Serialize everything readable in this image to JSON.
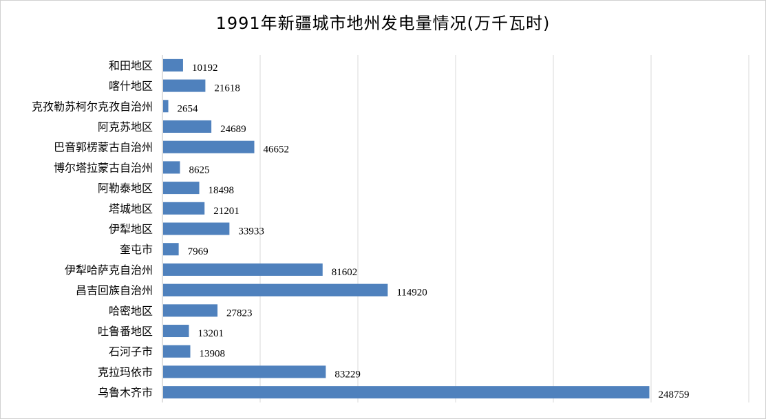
{
  "chart_data": {
    "type": "bar",
    "orientation": "horizontal",
    "title": "1991年新疆城市地州发电量情况(万千瓦时)",
    "xlabel": "",
    "ylabel": "",
    "xlim": [
      0,
      300000
    ],
    "grid": true,
    "legend": "none",
    "bar_color": "#4f81bd",
    "grid_color": "#d9d9d9",
    "categories": [
      "和田地区",
      "喀什地区",
      "克孜勒苏柯尔克孜自治州",
      "阿克苏地区",
      "巴音郭楞蒙古自治州",
      "博尔塔拉蒙古自治州",
      "阿勒泰地区",
      "塔城地区",
      "伊犁地区",
      "奎屯市",
      "伊犁哈萨克自治州",
      "昌吉回族自治州",
      "哈密地区",
      "吐鲁番地区",
      "石河子市",
      "克拉玛依市",
      "乌鲁木齐市"
    ],
    "values": [
      10192,
      21618,
      2654,
      24689,
      46652,
      8625,
      18498,
      21201,
      33933,
      7969,
      81602,
      114920,
      27823,
      13201,
      13908,
      83229,
      248759
    ],
    "data_labels": [
      "10192",
      "21618",
      "2654",
      "24689",
      "46652",
      "8625",
      "18498",
      "21201",
      "33933",
      "7969",
      "81602",
      "114920",
      "27823",
      "13201",
      "13908",
      "83229",
      "248759"
    ]
  }
}
